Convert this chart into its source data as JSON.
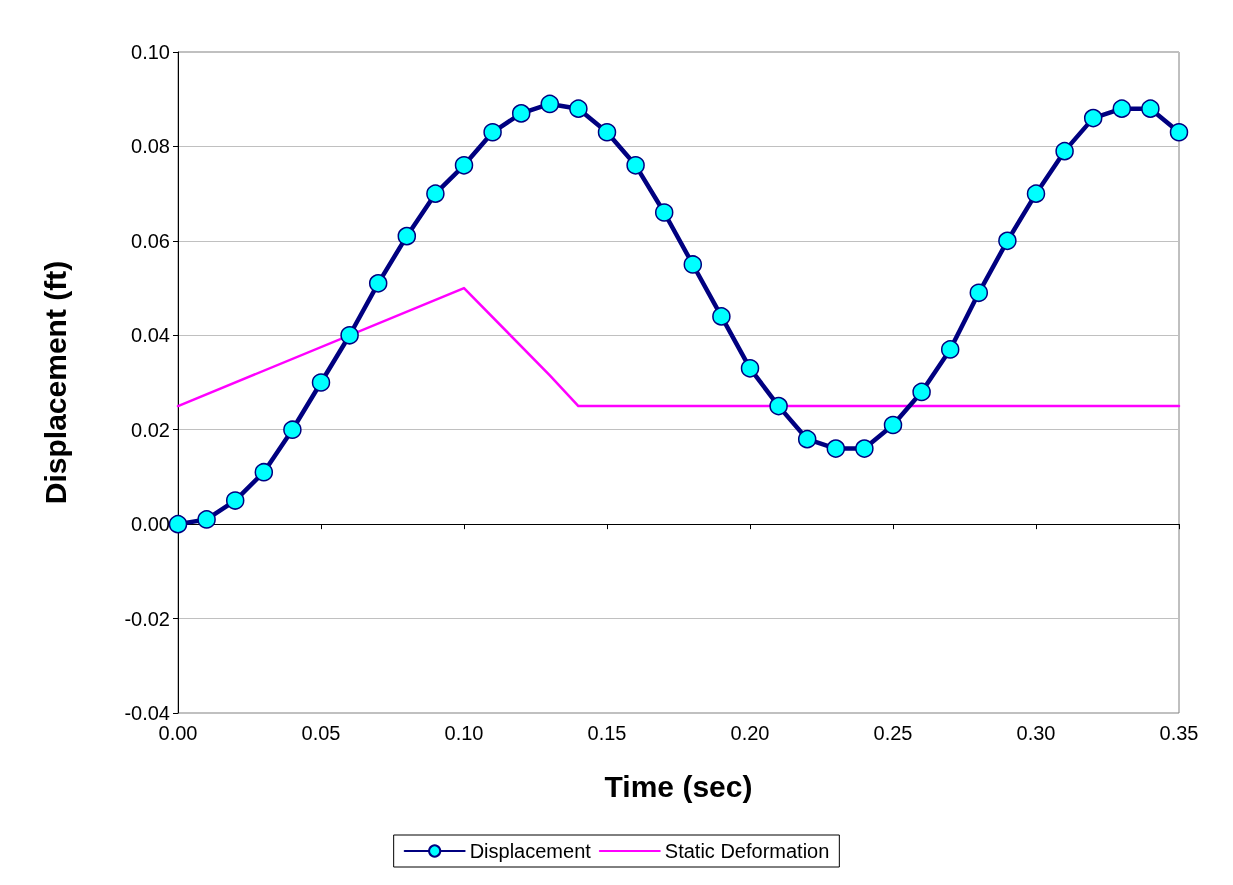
{
  "chart_data": {
    "type": "line",
    "xlabel": "Time (sec)",
    "ylabel": "Displacement (ft)",
    "x": [
      0,
      0.01,
      0.02,
      0.03,
      0.04,
      0.05,
      0.06,
      0.07,
      0.08,
      0.09,
      0.1,
      0.11,
      0.12,
      0.13,
      0.14,
      0.15,
      0.16,
      0.17,
      0.18,
      0.19,
      0.2,
      0.21,
      0.22,
      0.23,
      0.24,
      0.25,
      0.26,
      0.27,
      0.28,
      0.29,
      0.3,
      0.31,
      0.32,
      0.33,
      0.34,
      0.35
    ],
    "series": [
      {
        "name": "Displacement",
        "color": "#000080",
        "marker": "circle",
        "values": [
          0.0,
          0.001,
          0.005,
          0.011,
          0.02,
          0.03,
          0.04,
          0.051,
          0.061,
          0.07,
          0.076,
          0.083,
          0.087,
          0.089,
          0.088,
          0.083,
          0.076,
          0.066,
          0.055,
          0.044,
          0.033,
          0.025,
          0.018,
          0.016,
          0.016,
          0.021,
          0.028,
          0.037,
          0.049,
          0.06,
          0.07,
          0.079,
          0.086,
          0.088,
          0.088,
          0.083
        ]
      },
      {
        "name": "Static Deformation",
        "color": "#ff00ff",
        "marker": "none",
        "x": [
          0,
          0.1,
          0.13,
          0.14,
          0.35
        ],
        "values": [
          0.025,
          0.05,
          0.0315,
          0.025,
          0.025
        ]
      }
    ],
    "xlim": [
      0,
      0.35
    ],
    "xticks": [
      {
        "value": 0,
        "label": "0.00"
      },
      {
        "value": 0.05,
        "label": "0.05"
      },
      {
        "value": 0.1,
        "label": "0.10"
      },
      {
        "value": 0.15,
        "label": "0.15"
      },
      {
        "value": 0.2,
        "label": "0.20"
      },
      {
        "value": 0.25,
        "label": "0.25"
      },
      {
        "value": 0.3,
        "label": "0.30"
      },
      {
        "value": 0.35,
        "label": "0.35"
      }
    ],
    "ylim": [
      -0.04,
      0.1
    ],
    "yticks": [
      {
        "value": -0.04,
        "label": "-0.04"
      },
      {
        "value": -0.02,
        "label": "-0.02"
      },
      {
        "value": 0,
        "label": "0.00"
      },
      {
        "value": 0.02,
        "label": "0.02"
      },
      {
        "value": 0.04,
        "label": "0.04"
      },
      {
        "value": 0.06,
        "label": "0.06"
      },
      {
        "value": 0.08,
        "label": "0.08"
      },
      {
        "value": 0.1,
        "label": "0.10"
      }
    ],
    "grid": "y",
    "legend": "bottom",
    "line_style": "solid"
  }
}
